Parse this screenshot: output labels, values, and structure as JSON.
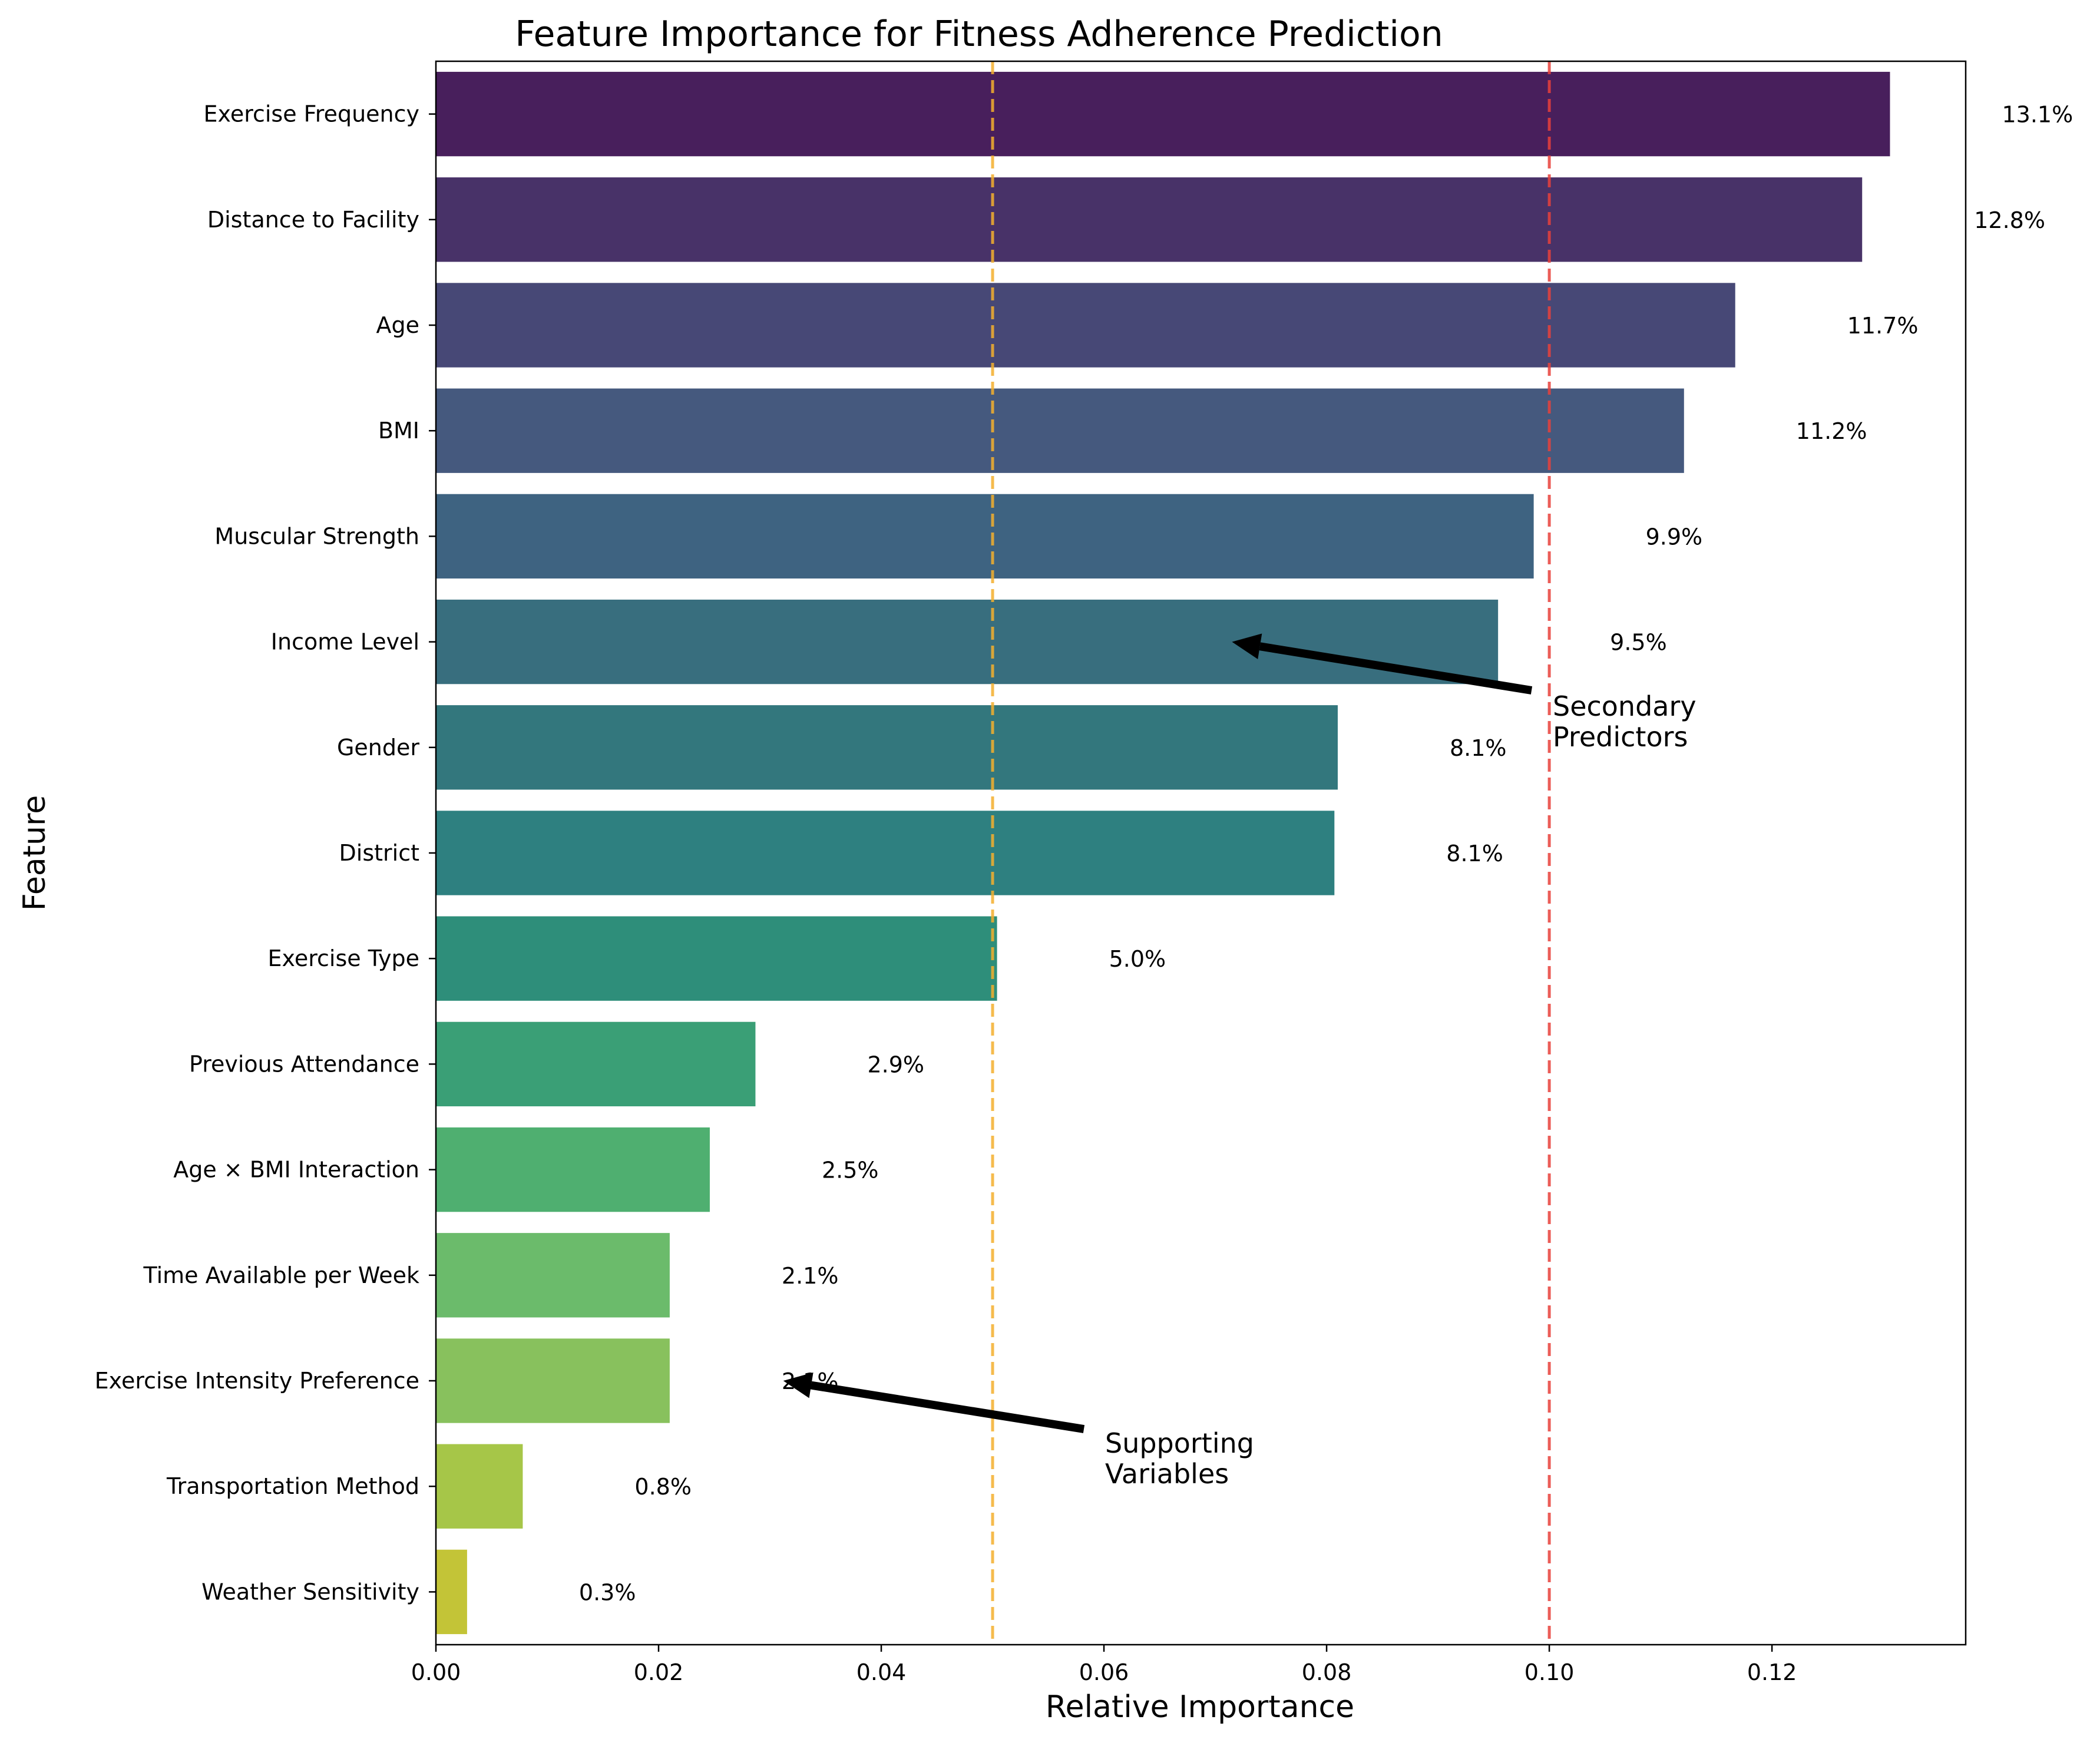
{
  "chart_data": {
    "type": "bar",
    "orientation": "horizontal",
    "title": "Feature Importance for Fitness Adherence Prediction",
    "xlabel": "Relative Importance",
    "ylabel": "Feature",
    "xlim": [
      0,
      0.1374
    ],
    "xticks": [
      "0.00",
      "0.02",
      "0.04",
      "0.06",
      "0.08",
      "0.10",
      "0.12"
    ],
    "grid": false,
    "legend": "none",
    "categories": [
      "Exercise Frequency",
      "Distance to Facility",
      "Age",
      "BMI",
      "Muscular Strength",
      "Income Level",
      "Gender",
      "District",
      "Exercise Type",
      "Previous Attendance",
      "Age × BMI Interaction",
      "Time Available per Week",
      "Exercise Intensity Preference",
      "Transportation Method",
      "Weather Sensitivity"
    ],
    "values": [
      0.1306,
      0.1281,
      0.1167,
      0.1121,
      0.0986,
      0.0954,
      0.081,
      0.0807,
      0.0504,
      0.0287,
      0.0246,
      0.021,
      0.021,
      0.0078,
      0.0028
    ],
    "value_labels": [
      "13.1%",
      "12.8%",
      "11.7%",
      "11.2%",
      "9.9%",
      "9.5%",
      "8.1%",
      "8.1%",
      "5.0%",
      "2.9%",
      "2.5%",
      "2.1%",
      "2.1%",
      "0.8%",
      "0.3%"
    ],
    "colors": [
      "#481f5c",
      "#483268",
      "#474876",
      "#45597e",
      "#3e6381",
      "#386e7e",
      "#33777d",
      "#2e8080",
      "#2e8e7a",
      "#3a9f76",
      "#4faf70",
      "#6bbb6b",
      "#88c15d",
      "#a6c648",
      "#c3c437"
    ],
    "reference_lines": [
      {
        "x": 0.05,
        "color": "#f4b02e",
        "style": "dashed"
      },
      {
        "x": 0.1,
        "color": "#e8413c",
        "style": "dashed"
      }
    ],
    "annotations": [
      {
        "text": "Secondary Predictors",
        "lines": [
          "Secondary",
          "Predictors"
        ],
        "points_to": {
          "x": 0.0715,
          "feature": "Income Level"
        }
      },
      {
        "text": "Supporting Variables",
        "lines": [
          "Supporting",
          "Variables"
        ],
        "points_to": {
          "x": 0.0312,
          "feature": "Exercise Intensity Preference"
        }
      }
    ]
  }
}
